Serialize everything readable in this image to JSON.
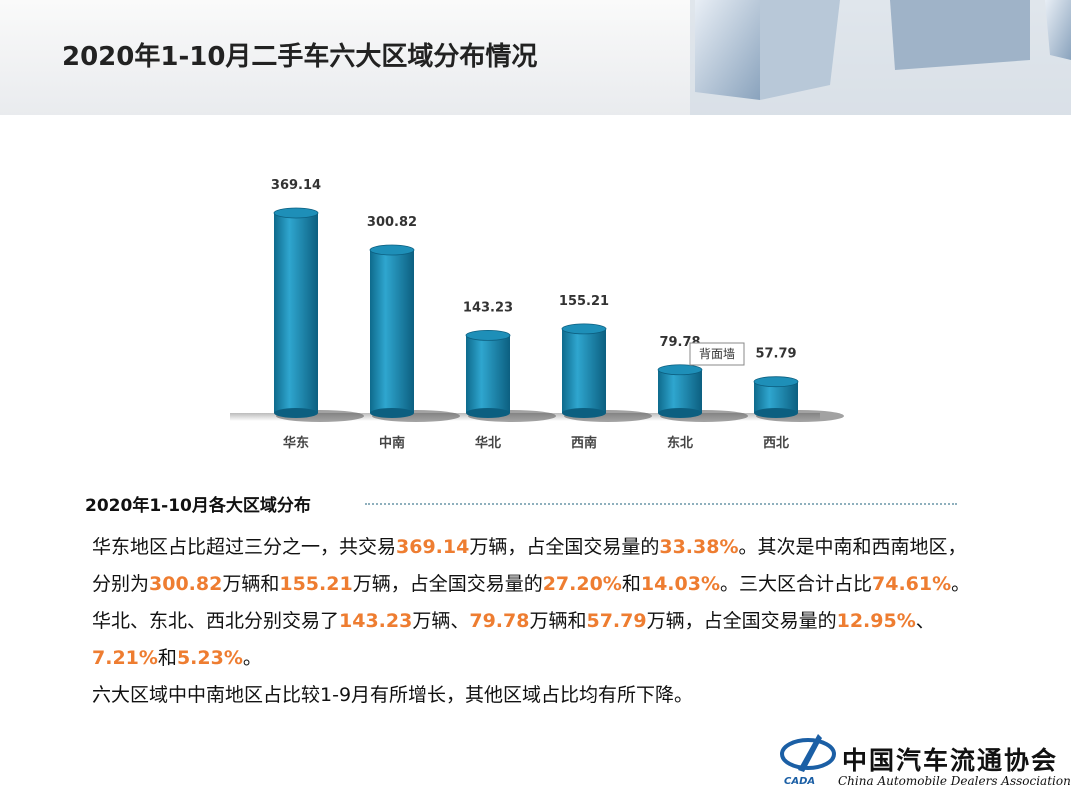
{
  "header": {
    "title": "2020年1-10月二手车六大区域分布情况"
  },
  "chart_data": {
    "type": "bar",
    "categories": [
      "华东",
      "中南",
      "华北",
      "西南",
      "东北",
      "西北"
    ],
    "values": [
      369.14,
      300.82,
      143.23,
      155.21,
      79.78,
      57.79
    ],
    "color": "#1e8fb8",
    "tooltip": "背面墙"
  },
  "section": {
    "heading": "2020年1-10月各大区域分布"
  },
  "body": {
    "paragraphs": [
      {
        "runs": [
          {
            "text": "华东地区占比超过三分之一，共交易",
            "highlight": false
          },
          {
            "text": "369.14",
            "highlight": true
          },
          {
            "text": "万辆，占全国交易量的",
            "highlight": false
          },
          {
            "text": "33.38%",
            "highlight": true
          },
          {
            "text": "。其次是中南和西南地区，分别为",
            "highlight": false
          },
          {
            "text": "300.82",
            "highlight": true
          },
          {
            "text": "万辆和",
            "highlight": false
          },
          {
            "text": "155.21",
            "highlight": true
          },
          {
            "text": "万辆，占全国交易量的",
            "highlight": false
          },
          {
            "text": "27.20%",
            "highlight": true
          },
          {
            "text": "和",
            "highlight": false
          },
          {
            "text": "14.03%",
            "highlight": true
          },
          {
            "text": "。三大区合计占比",
            "highlight": false
          },
          {
            "text": "74.61%",
            "highlight": true
          },
          {
            "text": "。华北、东北、西北分别交易了",
            "highlight": false
          },
          {
            "text": "143.23",
            "highlight": true
          },
          {
            "text": "万辆、",
            "highlight": false
          },
          {
            "text": "79.78",
            "highlight": true
          },
          {
            "text": "万辆和",
            "highlight": false
          },
          {
            "text": "57.79",
            "highlight": true
          },
          {
            "text": "万辆，占全国交易量的",
            "highlight": false
          },
          {
            "text": "12.95%",
            "highlight": true
          },
          {
            "text": "、",
            "highlight": false
          },
          {
            "text": "7.21%",
            "highlight": true
          },
          {
            "text": "和",
            "highlight": false
          },
          {
            "text": "5.23%",
            "highlight": true
          },
          {
            "text": "。",
            "highlight": false
          }
        ]
      },
      {
        "runs": [
          {
            "text": "六大区域中中南地区占比较1-9月有所增长，其他区域占比均有所下降。",
            "highlight": false
          }
        ]
      }
    ]
  },
  "logo": {
    "cn": "中国汽车流通协会",
    "en": "China Automobile Dealers Association",
    "abbr": "CADA"
  }
}
